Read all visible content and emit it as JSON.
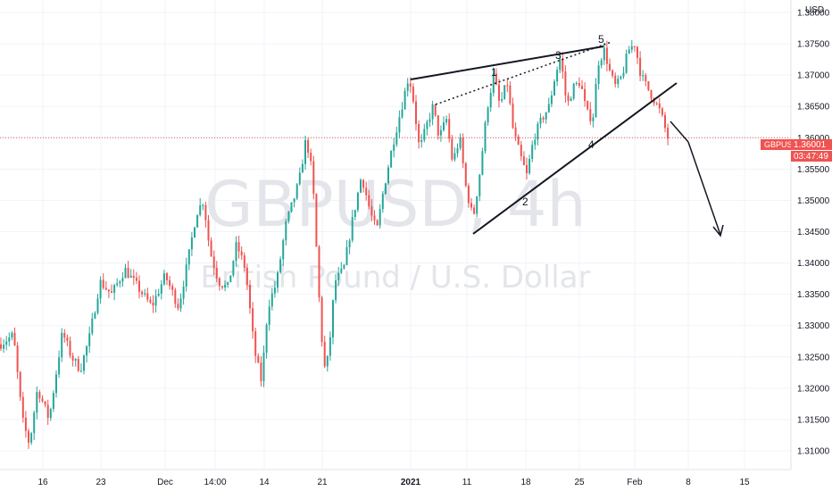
{
  "chart_data": {
    "type": "candlestick",
    "symbol": "GBPUSD, 4h",
    "description": "British Pound / U.S. Dollar",
    "currency": "USD",
    "last_price": "1.36001",
    "countdown": "03:47:49",
    "ylim": [
      1.307,
      1.382
    ],
    "y_ticks": [
      "1.38000",
      "1.37500",
      "1.37000",
      "1.36500",
      "1.36000",
      "1.35500",
      "1.35000",
      "1.34500",
      "1.34000",
      "1.33500",
      "1.33000",
      "1.32500",
      "1.32000",
      "1.31500",
      "1.31000"
    ],
    "x_ticks": [
      "16",
      "23",
      "Dec",
      "14:00",
      "14",
      "21",
      "2021",
      "11",
      "18",
      "25",
      "Feb",
      "8",
      "15"
    ],
    "colors": {
      "up": "#26a69a",
      "down": "#ef5350",
      "price_tag": "#ef5350"
    },
    "price_path": [
      [
        0,
        1.327
      ],
      [
        15,
        1.3285
      ],
      [
        25,
        1.315
      ],
      [
        33,
        1.311
      ],
      [
        42,
        1.32
      ],
      [
        55,
        1.315
      ],
      [
        70,
        1.329
      ],
      [
        80,
        1.325
      ],
      [
        90,
        1.323
      ],
      [
        100,
        1.328
      ],
      [
        112,
        1.337
      ],
      [
        125,
        1.335
      ],
      [
        140,
        1.339
      ],
      [
        155,
        1.336
      ],
      [
        170,
        1.333
      ],
      [
        185,
        1.338
      ],
      [
        200,
        1.333
      ],
      [
        210,
        1.34
      ],
      [
        220,
        1.348
      ],
      [
        228,
        1.35
      ],
      [
        235,
        1.342
      ],
      [
        245,
        1.337
      ],
      [
        255,
        1.336
      ],
      [
        265,
        1.343
      ],
      [
        275,
        1.339
      ],
      [
        285,
        1.326
      ],
      [
        293,
        1.321
      ],
      [
        300,
        1.333
      ],
      [
        310,
        1.337
      ],
      [
        320,
        1.346
      ],
      [
        335,
        1.353
      ],
      [
        343,
        1.36
      ],
      [
        350,
        1.354
      ],
      [
        358,
        1.333
      ],
      [
        363,
        1.323
      ],
      [
        368,
        1.325
      ],
      [
        375,
        1.337
      ],
      [
        385,
        1.339
      ],
      [
        395,
        1.347
      ],
      [
        405,
        1.354
      ],
      [
        415,
        1.348
      ],
      [
        422,
        1.345
      ],
      [
        430,
        1.352
      ],
      [
        440,
        1.359
      ],
      [
        450,
        1.365
      ],
      [
        458,
        1.37
      ],
      [
        463,
        1.366
      ],
      [
        470,
        1.358
      ],
      [
        478,
        1.362
      ],
      [
        485,
        1.365
      ],
      [
        492,
        1.36
      ],
      [
        500,
        1.363
      ],
      [
        507,
        1.356
      ],
      [
        515,
        1.36
      ],
      [
        522,
        1.352
      ],
      [
        530,
        1.347
      ],
      [
        538,
        1.355
      ],
      [
        546,
        1.365
      ],
      [
        553,
        1.37
      ],
      [
        560,
        1.365
      ],
      [
        568,
        1.369
      ],
      [
        575,
        1.361
      ],
      [
        583,
        1.357
      ],
      [
        590,
        1.354
      ],
      [
        598,
        1.36
      ],
      [
        607,
        1.363
      ],
      [
        615,
        1.365
      ],
      [
        622,
        1.37
      ],
      [
        628,
        1.373
      ],
      [
        635,
        1.365
      ],
      [
        642,
        1.368
      ],
      [
        650,
        1.369
      ],
      [
        657,
        1.364
      ],
      [
        664,
        1.363
      ],
      [
        670,
        1.372
      ],
      [
        677,
        1.374
      ],
      [
        684,
        1.37
      ],
      [
        690,
        1.368
      ],
      [
        697,
        1.37
      ],
      [
        704,
        1.374
      ],
      [
        711,
        1.375
      ],
      [
        718,
        1.37
      ],
      [
        725,
        1.368
      ],
      [
        733,
        1.366
      ],
      [
        740,
        1.364
      ],
      [
        748,
        1.36
      ]
    ],
    "annotations": {
      "wave_labels": [
        "1",
        "2",
        "3",
        "4",
        "5"
      ]
    }
  },
  "icons": [
    "arrow-down-icon"
  ]
}
